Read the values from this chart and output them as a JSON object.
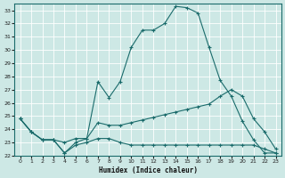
{
  "xlabel": "Humidex (Indice chaleur)",
  "background_color": "#cde8e5",
  "grid_color": "#b0d4d0",
  "line_color": "#1a6b6b",
  "xlim": [
    -0.5,
    23.5
  ],
  "ylim": [
    22,
    33.5
  ],
  "xticks": [
    0,
    1,
    2,
    3,
    4,
    5,
    6,
    7,
    8,
    9,
    10,
    11,
    12,
    13,
    14,
    15,
    16,
    17,
    18,
    19,
    20,
    21,
    22,
    23
  ],
  "yticks": [
    22,
    23,
    24,
    25,
    26,
    27,
    28,
    29,
    30,
    31,
    32,
    33
  ],
  "series": [
    {
      "x": [
        0,
        1,
        2,
        3,
        4,
        5,
        6,
        7,
        8,
        9,
        10,
        11,
        12,
        13,
        14,
        15,
        16,
        17,
        18,
        19,
        20,
        21,
        22,
        23
      ],
      "y": [
        24.8,
        23.8,
        23.2,
        23.2,
        22.2,
        23.0,
        23.3,
        27.6,
        26.4,
        27.6,
        30.2,
        31.5,
        31.5,
        32.0,
        33.3,
        33.2,
        32.8,
        30.2,
        27.7,
        26.5,
        24.6,
        23.2,
        22.2,
        22.2
      ]
    },
    {
      "x": [
        0,
        1,
        2,
        3,
        4,
        5,
        6,
        7,
        8,
        9,
        10,
        11,
        12,
        13,
        14,
        15,
        16,
        17,
        18,
        19,
        20,
        21,
        22,
        23
      ],
      "y": [
        24.8,
        23.8,
        23.2,
        23.2,
        23.0,
        23.3,
        23.3,
        24.5,
        24.3,
        24.3,
        24.5,
        24.7,
        24.9,
        25.1,
        25.3,
        25.5,
        25.7,
        25.9,
        26.5,
        27.0,
        26.5,
        24.8,
        23.8,
        22.5
      ]
    },
    {
      "x": [
        0,
        1,
        2,
        3,
        4,
        5,
        6,
        7,
        8,
        9,
        10,
        11,
        12,
        13,
        14,
        15,
        16,
        17,
        18,
        19,
        20,
        21,
        22,
        23
      ],
      "y": [
        24.8,
        23.8,
        23.2,
        23.2,
        22.2,
        22.8,
        23.0,
        23.3,
        23.3,
        23.0,
        22.8,
        22.8,
        22.8,
        22.8,
        22.8,
        22.8,
        22.8,
        22.8,
        22.8,
        22.8,
        22.8,
        22.8,
        22.5,
        22.2
      ]
    }
  ]
}
